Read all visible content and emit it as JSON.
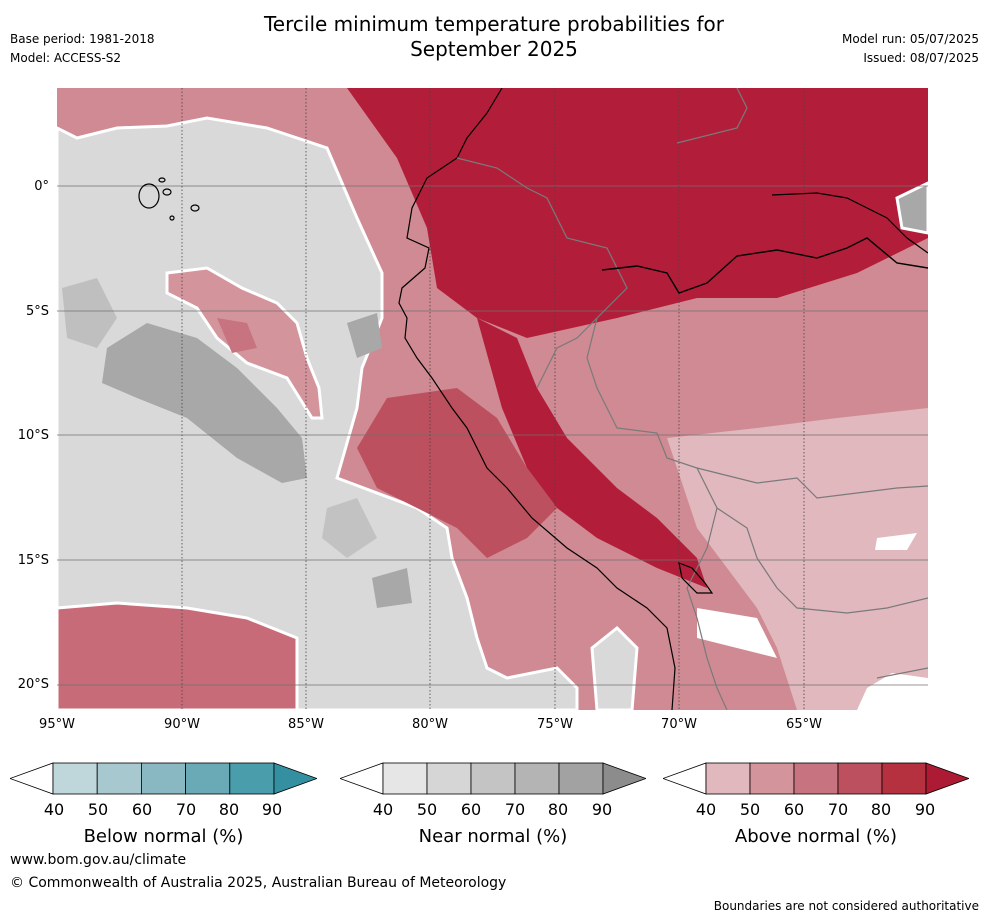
{
  "header": {
    "title_line1": "Tercile minimum temperature probabilities for",
    "title_line2": "September 2025",
    "base_period": "Base period: 1981-2018",
    "model": "Model: ACCESS-S2",
    "model_run": "Model run: 05/07/2025",
    "issued": "Issued: 08/07/2025"
  },
  "map": {
    "lat_labels": [
      "0°",
      "5°S",
      "10°S",
      "15°S",
      "20°S"
    ],
    "lon_labels": [
      "95°W",
      "90°W",
      "85°W",
      "80°W",
      "75°W",
      "70°W",
      "65°W"
    ]
  },
  "colorbars": [
    {
      "name": "Below normal (%)",
      "ticks": [
        "40",
        "50",
        "60",
        "70",
        "80",
        "90"
      ],
      "colors": [
        "#ffffff",
        "#bfd6da",
        "#a6c8ce",
        "#89b8c2",
        "#6aaab6",
        "#4a9dab",
        "#3490a0"
      ]
    },
    {
      "name": "Near normal (%)",
      "ticks": [
        "40",
        "50",
        "60",
        "70",
        "80",
        "90"
      ],
      "colors": [
        "#ffffff",
        "#e6e6e6",
        "#d6d6d6",
        "#c4c4c4",
        "#b4b4b4",
        "#a2a2a2",
        "#8c8c8c"
      ]
    },
    {
      "name": "Above normal (%)",
      "ticks": [
        "40",
        "50",
        "60",
        "70",
        "80",
        "90"
      ],
      "colors": [
        "#ffffff",
        "#e0b8bd",
        "#d4949c",
        "#c87380",
        "#bd505e",
        "#b5313f",
        "#ac1a33"
      ]
    }
  ],
  "footer": {
    "website": "www.bom.gov.au/climate",
    "copyright": "© Commonwealth of Australia 2025, Australian Bureau of Meteorology",
    "disclaimer": "Boundaries are not considered authoritative"
  }
}
